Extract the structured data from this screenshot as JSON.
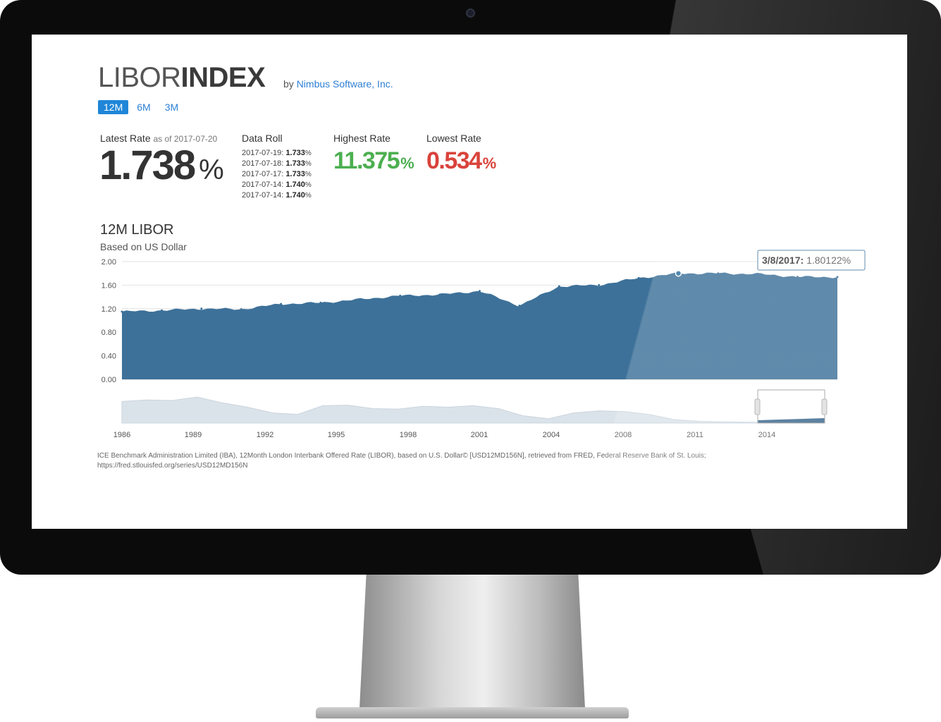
{
  "brand": {
    "light": "LIBOR",
    "bold": "INDEX",
    "by": "by",
    "company": "Nimbus Software, Inc."
  },
  "tabs": [
    {
      "label": "12M",
      "active": true
    },
    {
      "label": "6M"
    },
    {
      "label": "3M"
    }
  ],
  "latest": {
    "label": "Latest Rate",
    "as_of": "as of 2017-07-20",
    "value": "1.738",
    "unit": "%"
  },
  "data_roll": {
    "label": "Data Roll",
    "entries": [
      {
        "date": "2017-07-19:",
        "value": "1.733",
        "unit": "%"
      },
      {
        "date": "2017-07-18:",
        "value": "1.733",
        "unit": "%"
      },
      {
        "date": "2017-07-17:",
        "value": "1.733",
        "unit": "%"
      },
      {
        "date": "2017-07-14:",
        "value": "1.740",
        "unit": "%"
      },
      {
        "date": "2017-07-14:",
        "value": "1.740",
        "unit": "%"
      }
    ]
  },
  "highest": {
    "label": "Highest Rate",
    "value": "11.375",
    "unit": "%"
  },
  "lowest": {
    "label": "Lowest Rate",
    "value": "0.534",
    "unit": "%"
  },
  "chart": {
    "title": "12M LIBOR",
    "subtitle": "Based on US Dollar"
  },
  "tooltip": {
    "date": "3/8/2017:",
    "value": "1.80122%"
  },
  "source": "ICE Benchmark Administration Limited (IBA), 12Month London Interbank Offered Rate (LIBOR), based on U.S. Dollar© [USD12MD156N], retrieved from FRED, Federal Reserve Bank of St. Louis; https://fred.stlouisfed.org/series/USD12MD156N",
  "colors": {
    "area": "#3d7199",
    "accent": "#1f86d8",
    "high": "#4caf50",
    "low": "#d9433b",
    "navigator": "#dbe3ea"
  },
  "chart_data": {
    "type": "area",
    "ylim": [
      0,
      2
    ],
    "y_ticks": [
      "0.00",
      "0.40",
      "0.80",
      "1.20",
      "1.60",
      "2.00"
    ],
    "grid": true,
    "x_from": "2016-01-01",
    "x_to": "2017-07-20",
    "series": [
      {
        "x": [
          "2016-01",
          "2016-02",
          "2016-03",
          "2016-04",
          "2016-05",
          "2016-06",
          "2016-07",
          "2016-08",
          "2016-09",
          "2016-10",
          "2016-11",
          "2016-12",
          "2017-01",
          "2017-02",
          "2017-03",
          "2017-04",
          "2017-05",
          "2017-06",
          "2017-07"
        ],
        "values": [
          1.15,
          1.17,
          1.2,
          1.19,
          1.28,
          1.3,
          1.36,
          1.42,
          1.44,
          1.5,
          1.25,
          1.58,
          1.6,
          1.72,
          1.8,
          1.8,
          1.79,
          1.74,
          1.738
        ]
      }
    ],
    "navigator": {
      "x_ticks": [
        "1986",
        "1989",
        "1992",
        "1995",
        "1998",
        "2001",
        "2004",
        "2008",
        "2011",
        "2014"
      ]
    }
  }
}
